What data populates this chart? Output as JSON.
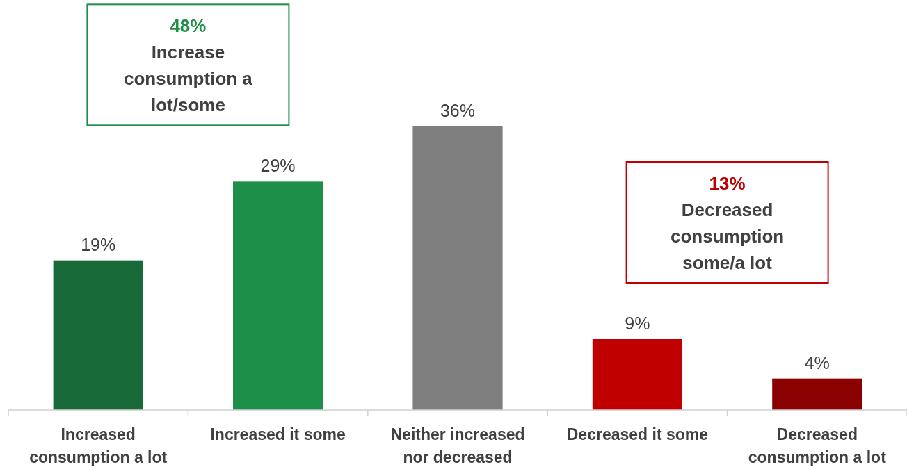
{
  "chart_data": {
    "type": "bar",
    "categories": [
      "Increased consumption a lot",
      "Increased it some",
      "Neither increased nor decreased",
      "Decreased it some",
      "Decreased consumption a lot"
    ],
    "values": [
      19,
      29,
      36,
      9,
      4
    ],
    "value_labels": [
      "19%",
      "29%",
      "36%",
      "9%",
      "4%"
    ],
    "colors": [
      "#186b38",
      "#1e8f48",
      "#7f7f7f",
      "#c00000",
      "#8b0000"
    ],
    "annotations": [
      "48%\nIncrease\nconsumption a\nlot/some",
      "13%\nDecreased\nconsumption\nsome/a lot"
    ]
  }
}
